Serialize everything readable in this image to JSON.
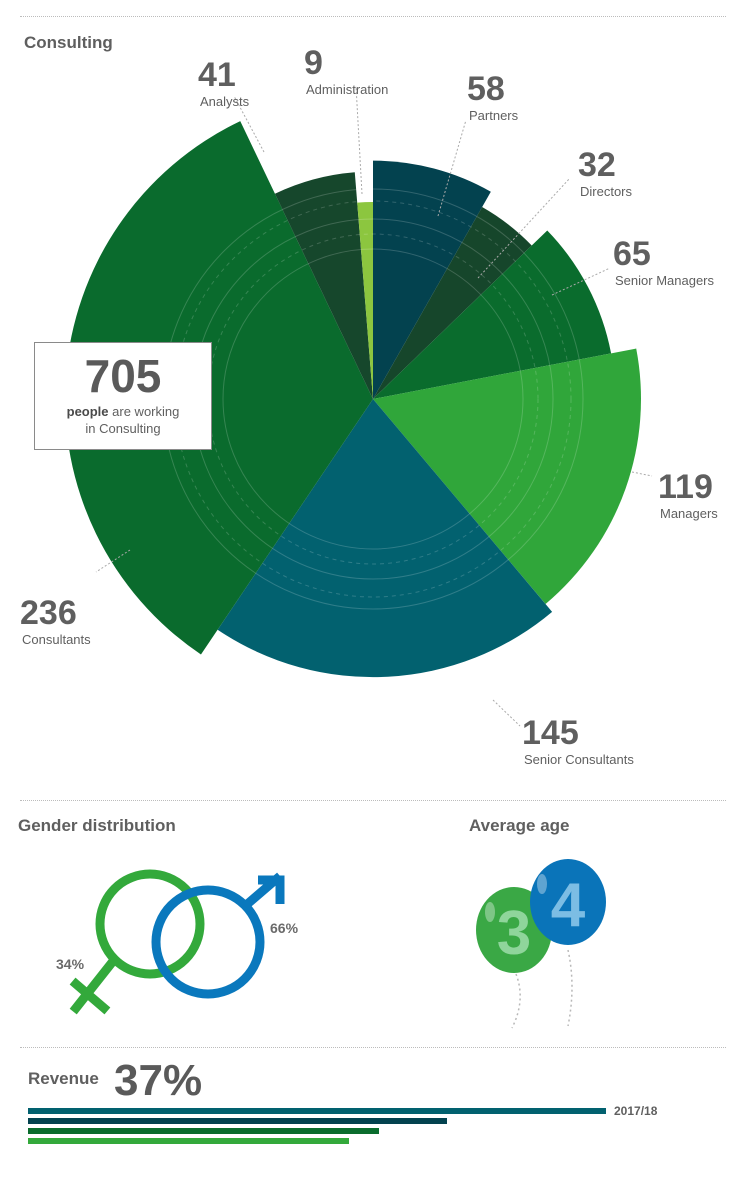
{
  "sections": {
    "consulting_title": "Consulting",
    "gender_title": "Gender distribution",
    "age_title": "Average age",
    "revenue_title": "Revenue"
  },
  "total_box": {
    "value": "705",
    "caption_bold": "people",
    "caption_line1": "are working",
    "caption_line2": "in Consulting"
  },
  "chart_data": {
    "type": "pie",
    "subtype": "variable-radius (polar area) pie",
    "title": "Consulting",
    "total": 705,
    "slices": [
      {
        "label": "Partners",
        "value": 58,
        "color": "#03424f"
      },
      {
        "label": "Directors",
        "value": 32,
        "color": "#16462b"
      },
      {
        "label": "Senior Managers",
        "value": 65,
        "color": "#0a6c2d"
      },
      {
        "label": "Managers",
        "value": 119,
        "color": "#30a63a"
      },
      {
        "label": "Senior Consultants",
        "value": 145,
        "color": "#02616f"
      },
      {
        "label": "Consultants",
        "value": 236,
        "color": "#0a6b2d"
      },
      {
        "label": "Analysts",
        "value": 41,
        "color": "#16472c"
      },
      {
        "label": "Administration",
        "value": 9,
        "color": "#8cc63f"
      }
    ]
  },
  "gender": {
    "female_pct": "34%",
    "male_pct": "66%",
    "female_color": "#33a93b",
    "male_color": "#0a78bd"
  },
  "age": {
    "value": "34",
    "digit1": "3",
    "digit2": "4",
    "balloon1_color": "#3aa845",
    "balloon2_color": "#0a74b9"
  },
  "revenue": {
    "value": "37%",
    "year_label": "2017/18",
    "bars": [
      {
        "value": 1.0,
        "color": "#02616f"
      },
      {
        "value": 0.725,
        "color": "#03424f"
      },
      {
        "value": 0.607,
        "color": "#0a6c2d"
      },
      {
        "value": 0.555,
        "color": "#33a93b"
      }
    ]
  }
}
